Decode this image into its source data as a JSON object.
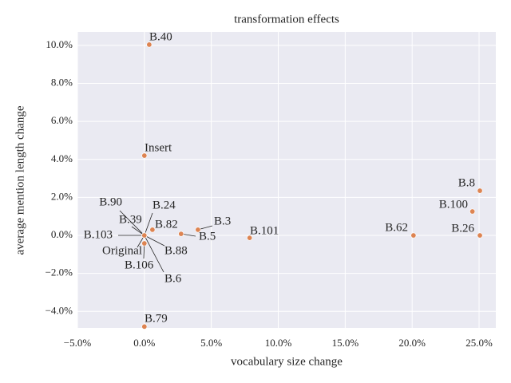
{
  "chart_data": {
    "type": "scatter",
    "title": "transformation effects",
    "x_label": "vocabulary size change",
    "y_label": "average mention length change",
    "color": "#dd8452",
    "grid": true,
    "xlim": [
      -5,
      26.25
    ],
    "ylim": [
      -4.87,
      10.71
    ],
    "xticks": [
      {
        "value": -5,
        "label": "−5.0%"
      },
      {
        "value": 0,
        "label": "0.0%"
      },
      {
        "value": 5,
        "label": "5.0%"
      },
      {
        "value": 10,
        "label": "10.0%"
      },
      {
        "value": 15,
        "label": "15.0%"
      },
      {
        "value": 20,
        "label": "20.0%"
      },
      {
        "value": 25,
        "label": "25.0%"
      }
    ],
    "yticks": [
      {
        "value": -4,
        "label": "−4.0%"
      },
      {
        "value": -2,
        "label": "−2.0%"
      },
      {
        "value": 0,
        "label": "0.0%"
      },
      {
        "value": 2,
        "label": "2.0%"
      },
      {
        "value": 4,
        "label": "4.0%"
      },
      {
        "value": 6,
        "label": "6.0%"
      },
      {
        "value": 8,
        "label": "8.0%"
      },
      {
        "value": 10,
        "label": "10.0%"
      }
    ],
    "labels": [
      "B.40",
      "Insert",
      "B.8",
      "B.100",
      "B.82",
      "B.3",
      "B.5",
      "B.101",
      "B.62",
      "B.26",
      "B.90",
      "B.39",
      "B.24",
      "B.103",
      "Original",
      "B.106",
      "B.88",
      "B.6",
      "B.79"
    ],
    "x": [
      0.36,
      0,
      25.06,
      24.5,
      0.6,
      4.0,
      2.74,
      7.86,
      20.1,
      25.06,
      0,
      0,
      0,
      0,
      0,
      0,
      0,
      0,
      0
    ],
    "values": [
      10.04,
      4.2,
      2.35,
      1.26,
      0.3,
      0.3,
      0.08,
      -0.13,
      0,
      0,
      0,
      0,
      0,
      0,
      0,
      -0.42,
      0,
      0,
      -4.8
    ]
  }
}
